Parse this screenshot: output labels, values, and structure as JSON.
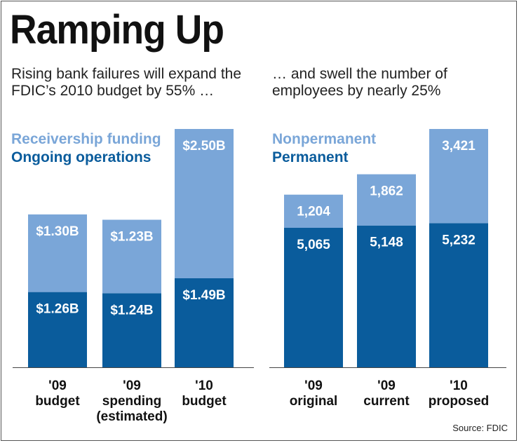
{
  "title": "Ramping Up",
  "subtitle_left": "Rising bank failures will expand the FDIC’s 2010 budget by 55% …",
  "subtitle_right": "… and swell the number of employees by nearly 25%",
  "source": "Source: FDIC",
  "colors": {
    "light": "#7aa6d8",
    "dark": "#0a5c9c",
    "label": "#ffffff"
  },
  "chart_data": [
    {
      "type": "bar",
      "stacked": true,
      "title": "Rising bank failures will expand the FDIC’s 2010 budget by 55% …",
      "categories": [
        [
          "'09",
          "budget"
        ],
        [
          "'09",
          "spending",
          "(estimated)"
        ],
        [
          "'10",
          "budget"
        ]
      ],
      "series": [
        {
          "name": "Ongoing operations",
          "values": [
            1.26,
            1.24,
            1.49
          ],
          "labels": [
            "$1.26B",
            "$1.24B",
            "$1.49B"
          ],
          "color": "dark"
        },
        {
          "name": "Receivership funding",
          "values": [
            1.3,
            1.23,
            2.5
          ],
          "labels": [
            "$1.30B",
            "$1.23B",
            "$2.50B"
          ],
          "color": "light"
        }
      ],
      "legend": [
        "Receivership funding",
        "Ongoing operations"
      ],
      "ylim": [
        0,
        3.99
      ],
      "unit": "billions of dollars"
    },
    {
      "type": "bar",
      "stacked": true,
      "title": "… and swell the number of employees by nearly 25%",
      "categories": [
        [
          "'09",
          "original"
        ],
        [
          "'09",
          "current"
        ],
        [
          "'10",
          "proposed"
        ]
      ],
      "series": [
        {
          "name": "Permanent",
          "values": [
            5065,
            5148,
            5232
          ],
          "labels": [
            "5,065",
            "5,148",
            "5,232"
          ],
          "color": "dark"
        },
        {
          "name": "Nonpermanent",
          "values": [
            1204,
            1862,
            3421
          ],
          "labels": [
            "1,204",
            "1,862",
            "3,421"
          ],
          "color": "light"
        }
      ],
      "legend": [
        "Nonpermanent",
        "Permanent"
      ],
      "ylim": [
        0,
        8653
      ],
      "unit": "employees"
    }
  ]
}
